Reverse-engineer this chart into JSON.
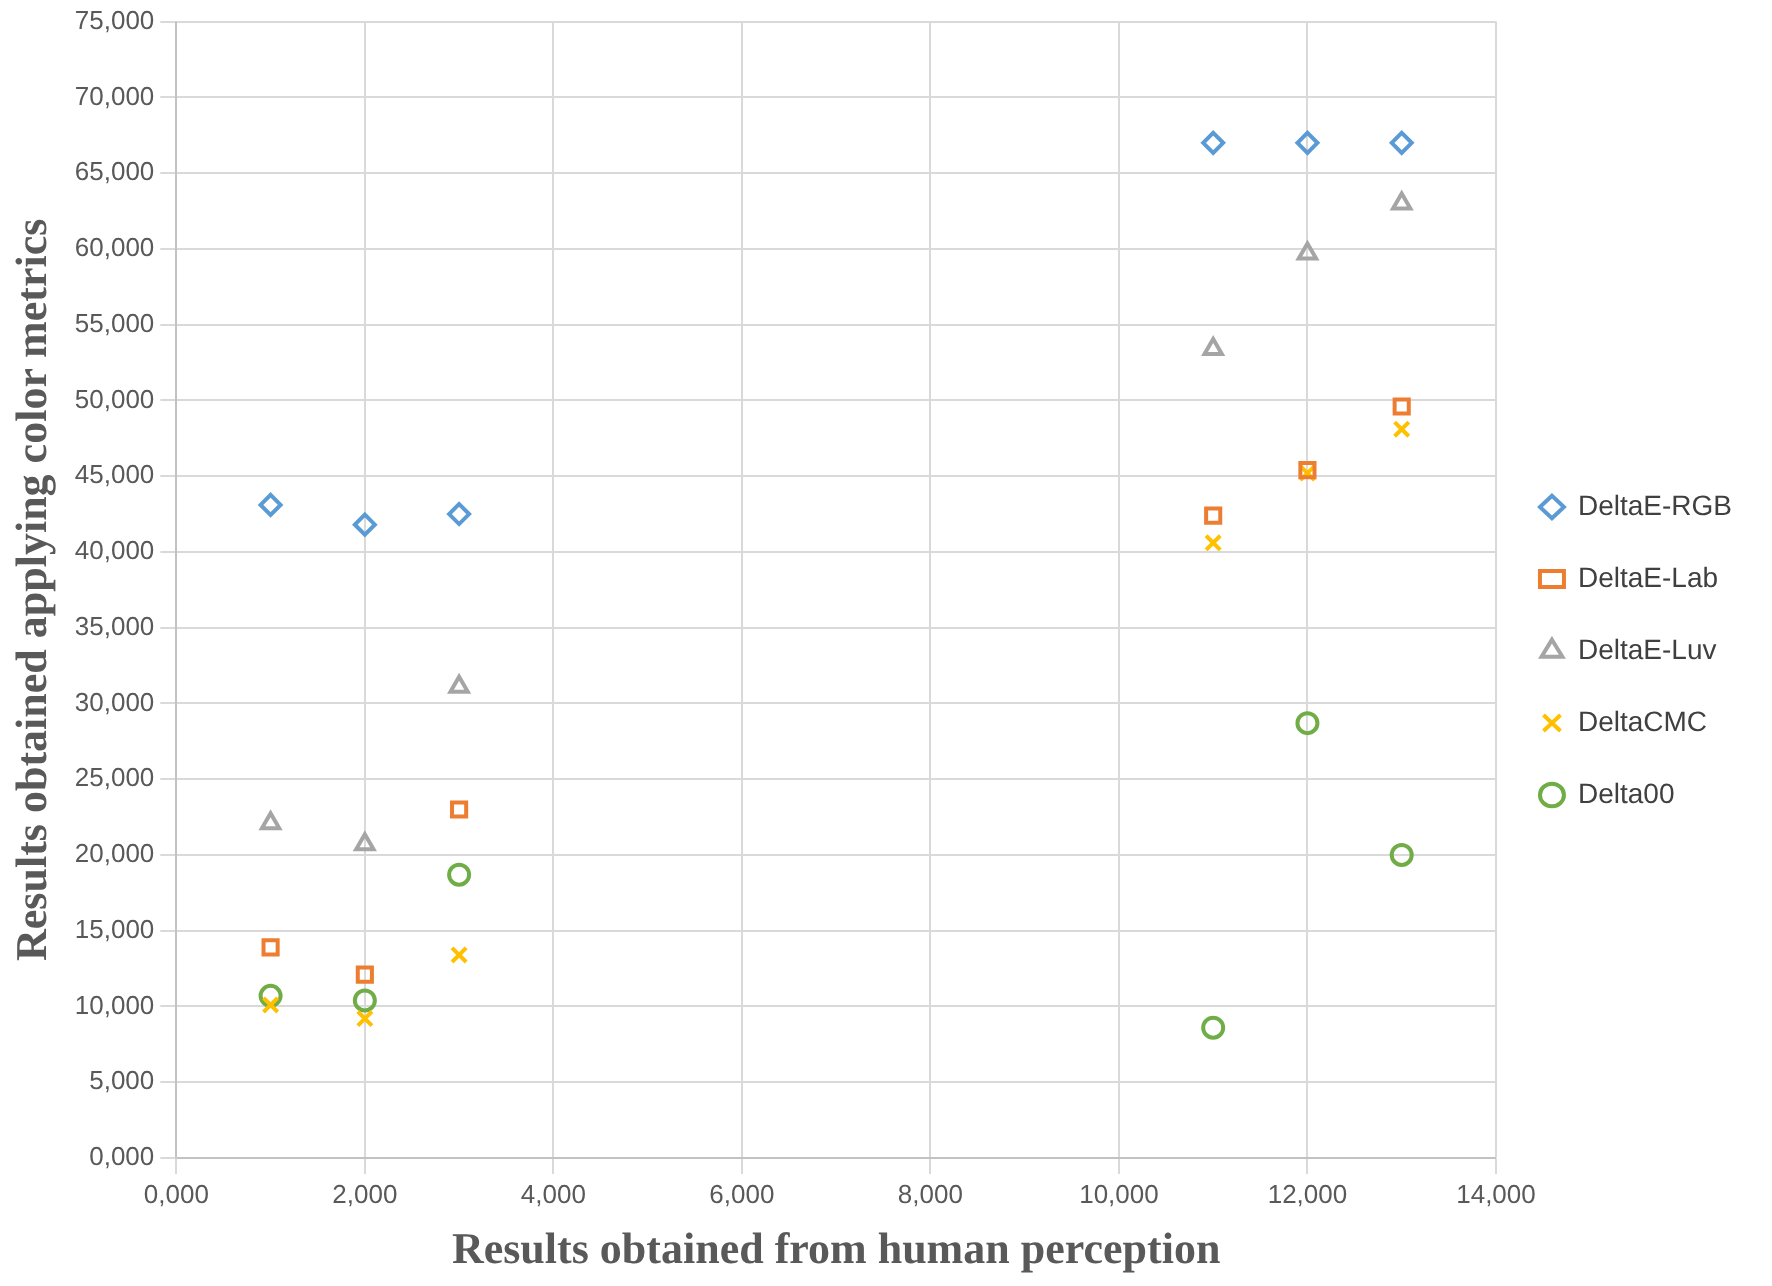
{
  "chart_data": {
    "type": "scatter",
    "xlabel": "Results obtained from human perception",
    "ylabel": "Results obtained applying color metrics",
    "x": [
      1,
      2,
      3,
      11,
      12,
      13
    ],
    "series": [
      {
        "name": "DeltaE-RGB",
        "color": "#5b9bd5",
        "marker": "diamond",
        "values": [
          43.1,
          41.8,
          42.5,
          67.0,
          67.0,
          67.0
        ]
      },
      {
        "name": "DeltaE-Lab",
        "color": "#ed7d31",
        "marker": "square",
        "values": [
          13.9,
          12.1,
          23.0,
          42.4,
          45.4,
          49.6
        ]
      },
      {
        "name": "DeltaE-Luv",
        "color": "#a5a5a5",
        "marker": "triangle",
        "values": [
          22.1,
          20.7,
          31.1,
          53.4,
          59.7,
          63.0
        ]
      },
      {
        "name": "DeltaCMC",
        "color": "#ffc000",
        "marker": "cross",
        "values": [
          10.1,
          9.2,
          13.4,
          40.6,
          45.2,
          48.1
        ]
      },
      {
        "name": "Delta00",
        "color": "#70ad47",
        "marker": "circle",
        "values": [
          10.7,
          10.4,
          18.7,
          8.6,
          28.7,
          20.0
        ]
      }
    ],
    "xlim": [
      0,
      14
    ],
    "ylim": [
      0,
      75
    ],
    "xticks": [
      {
        "value": 0,
        "label": "0,000"
      },
      {
        "value": 2,
        "label": "2,000"
      },
      {
        "value": 4,
        "label": "4,000"
      },
      {
        "value": 6,
        "label": "6,000"
      },
      {
        "value": 8,
        "label": "8,000"
      },
      {
        "value": 10,
        "label": "10,000"
      },
      {
        "value": 12,
        "label": "12,000"
      },
      {
        "value": 14,
        "label": "14,000"
      }
    ],
    "yticks": [
      {
        "value": 0,
        "label": "0,000"
      },
      {
        "value": 5,
        "label": "5,000"
      },
      {
        "value": 10,
        "label": "10,000"
      },
      {
        "value": 15,
        "label": "15,000"
      },
      {
        "value": 20,
        "label": "20,000"
      },
      {
        "value": 25,
        "label": "25,000"
      },
      {
        "value": 30,
        "label": "30,000"
      },
      {
        "value": 35,
        "label": "35,000"
      },
      {
        "value": 40,
        "label": "40,000"
      },
      {
        "value": 45,
        "label": "45,000"
      },
      {
        "value": 50,
        "label": "50,000"
      },
      {
        "value": 55,
        "label": "55,000"
      },
      {
        "value": 60,
        "label": "60,000"
      },
      {
        "value": 65,
        "label": "65,000"
      },
      {
        "value": 70,
        "label": "70,000"
      },
      {
        "value": 75,
        "label": "75,000"
      }
    ],
    "grid": true,
    "legend": "right"
  }
}
